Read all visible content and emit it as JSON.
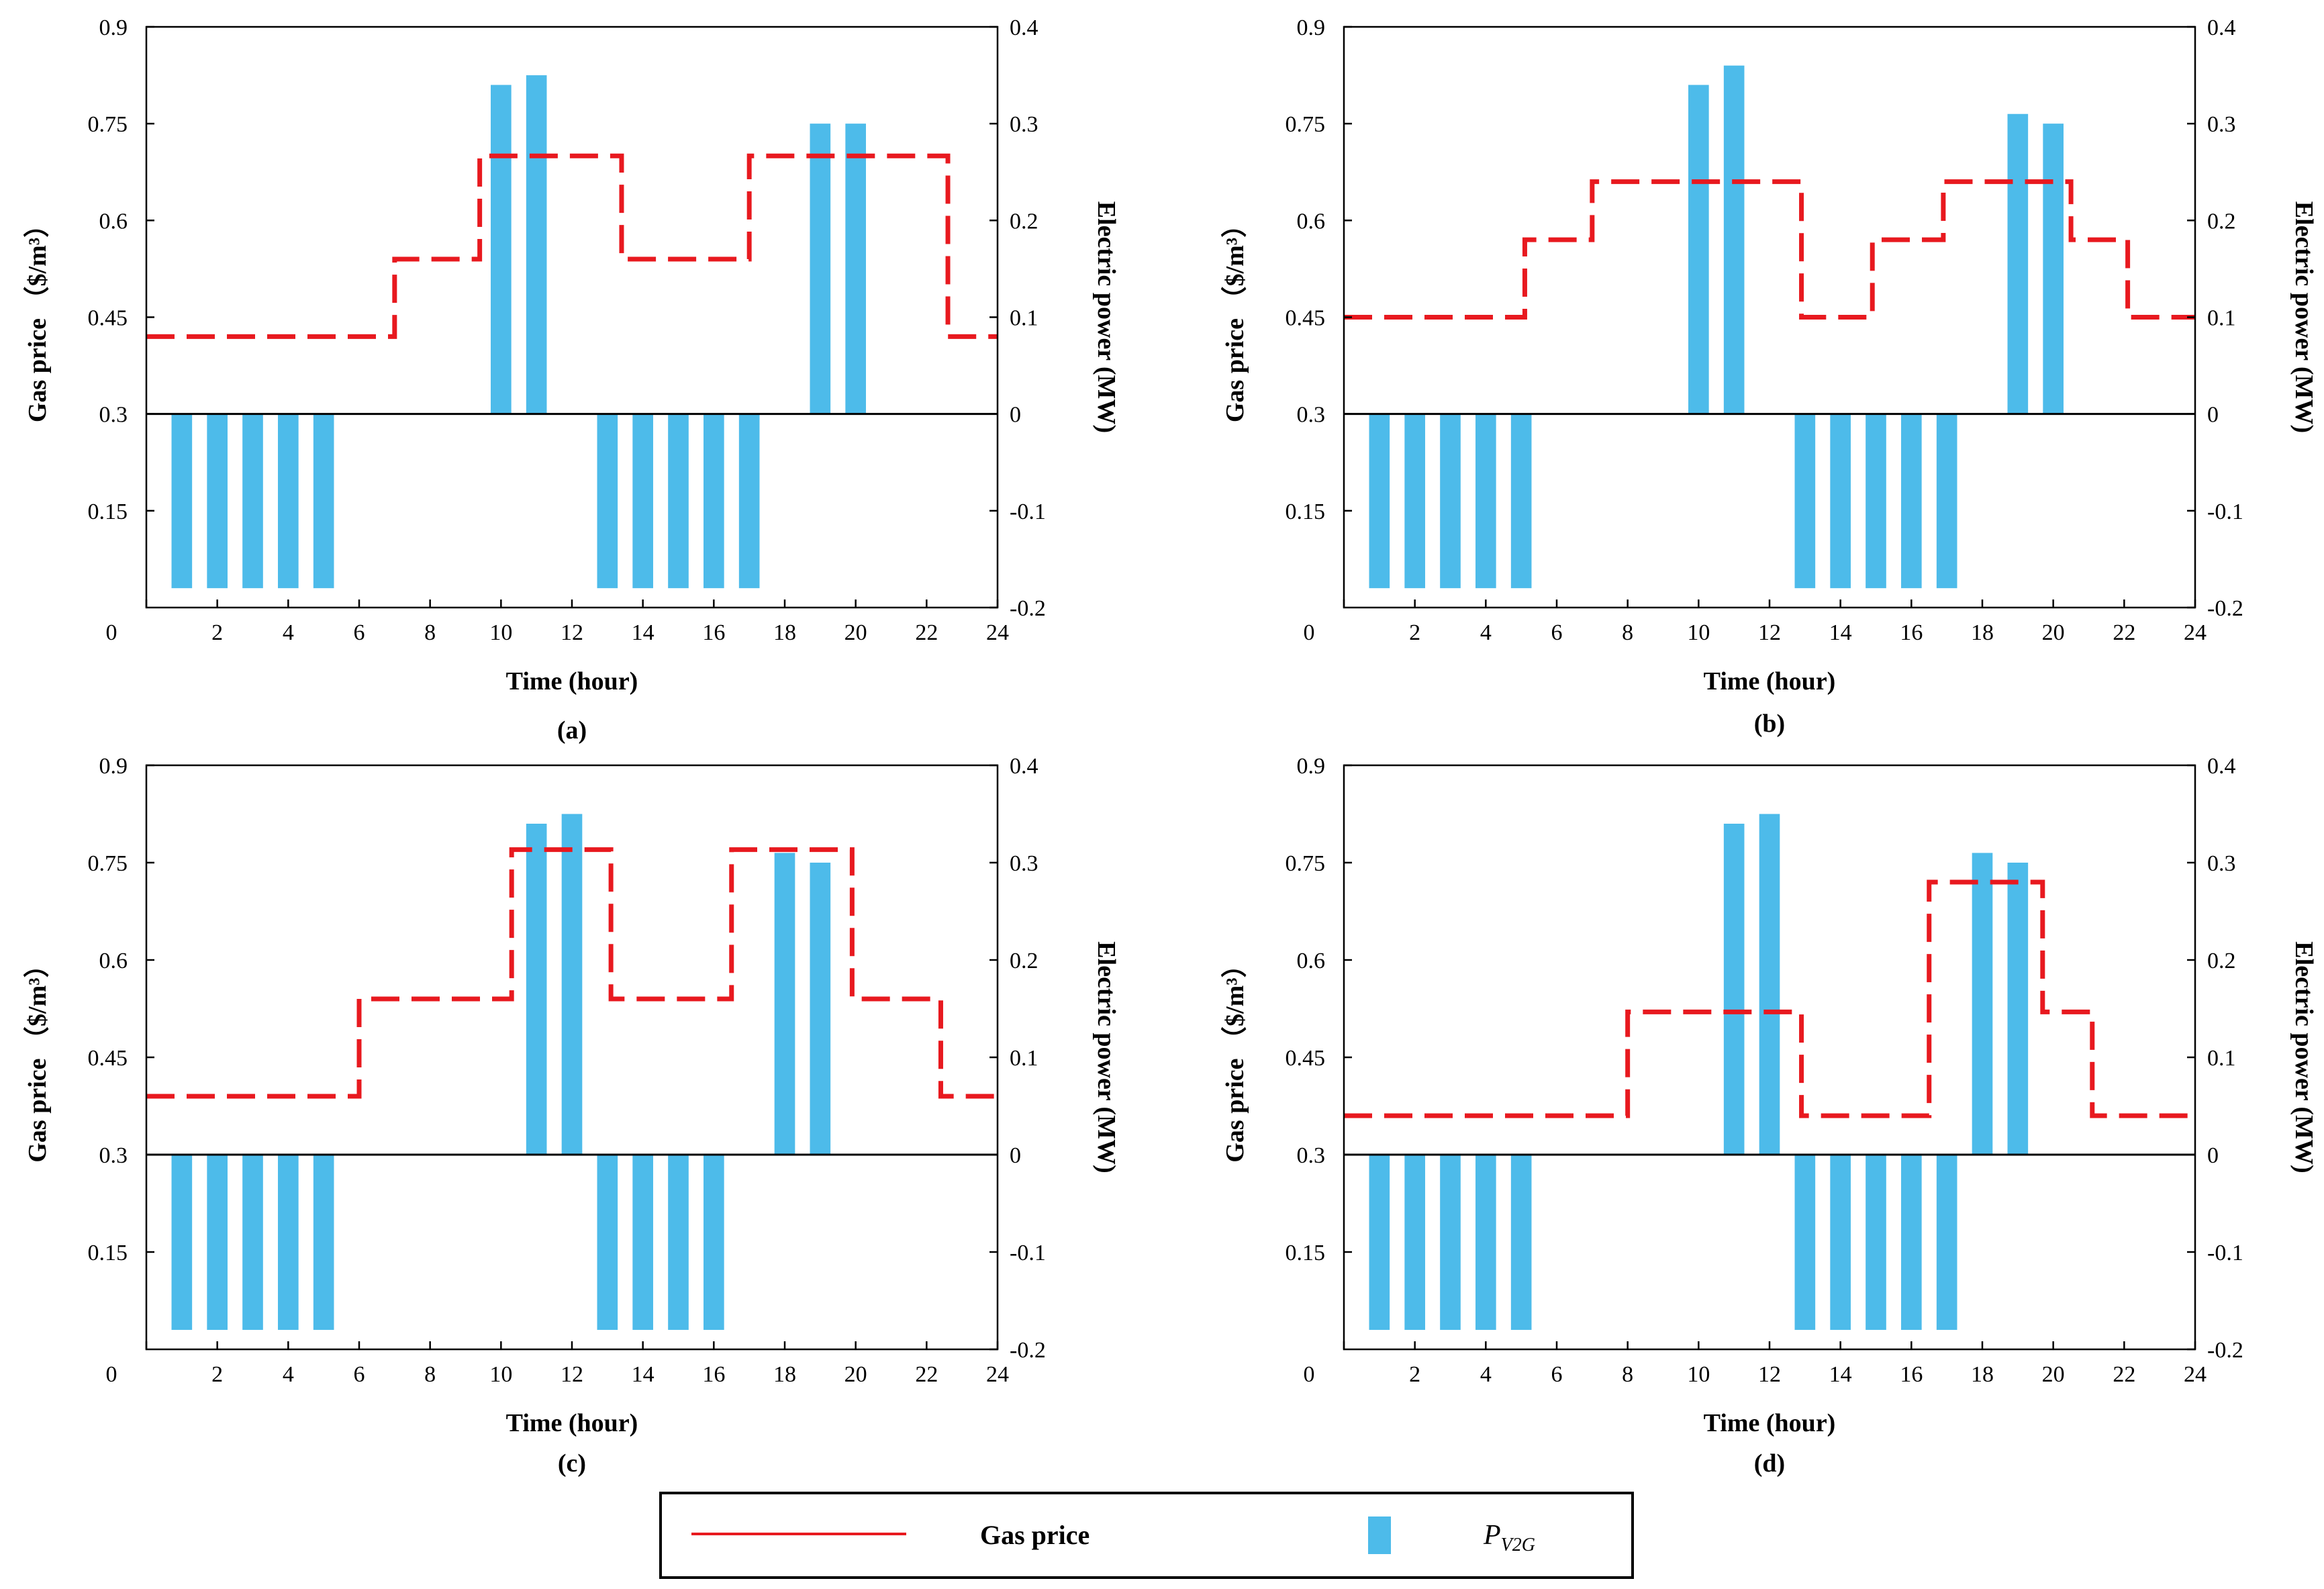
{
  "colors": {
    "gas_price": "#e8191f",
    "bar": "#4dbbea",
    "axis": "#000000"
  },
  "legend": {
    "gas_price_label": "Gas price",
    "v2g_symbol": "P",
    "v2g_subscript": "V2G"
  },
  "chart_data": [
    {
      "type": "bar+step-line",
      "panel_label": "(a)",
      "xlabel": "Time (hour)",
      "ylabel_left": "Gas price （$/m³）",
      "ylabel_right": "Electric power (MW)",
      "xlim": [
        0,
        24
      ],
      "x_ticks": [
        "0",
        "2",
        "4",
        "6",
        "8",
        "10",
        "12",
        "14",
        "16",
        "18",
        "20",
        "22",
        "24"
      ],
      "ylim_left": [
        0,
        0.9
      ],
      "y_left_ticks": [
        "0",
        "0.15",
        "0.3",
        "0.45",
        "0.6",
        "0.75",
        "0.9"
      ],
      "ylim_right": [
        -0.2,
        0.4
      ],
      "y_right_ticks": [
        "-0.2",
        "-0.1",
        "0",
        "0.1",
        "0.2",
        "0.3",
        "0.4"
      ],
      "bars": {
        "name": "P_V2G",
        "hours": [
          1,
          2,
          3,
          4,
          5,
          10,
          11,
          13,
          14,
          15,
          16,
          17,
          19,
          20
        ],
        "values": [
          -0.18,
          -0.18,
          -0.18,
          -0.18,
          -0.18,
          0.34,
          0.35,
          -0.18,
          -0.18,
          -0.18,
          -0.18,
          -0.18,
          0.3,
          0.3
        ]
      },
      "gas_price": {
        "name": "Gas price",
        "breaks": [
          0,
          7,
          9.4,
          13.4,
          17,
          22.6,
          24
        ],
        "values": [
          0.42,
          0.54,
          0.7,
          0.54,
          0.7,
          0.42
        ]
      }
    },
    {
      "type": "bar+step-line",
      "panel_label": "(b)",
      "xlabel": "Time (hour)",
      "ylabel_left": "Gas price （$/m³）",
      "ylabel_right": "Electric power (MW)",
      "xlim": [
        0,
        24
      ],
      "x_ticks": [
        "0",
        "2",
        "4",
        "6",
        "8",
        "10",
        "12",
        "14",
        "16",
        "18",
        "20",
        "22",
        "24"
      ],
      "ylim_left": [
        0,
        0.9
      ],
      "y_left_ticks": [
        "0",
        "0.15",
        "0.3",
        "0.45",
        "0.6",
        "0.75",
        "0.9"
      ],
      "ylim_right": [
        -0.2,
        0.4
      ],
      "y_right_ticks": [
        "-0.2",
        "-0.1",
        "0",
        "0.1",
        "0.2",
        "0.3",
        "0.4"
      ],
      "bars": {
        "name": "P_V2G",
        "hours": [
          1,
          2,
          3,
          4,
          5,
          10,
          11,
          13,
          14,
          15,
          16,
          17,
          19,
          20
        ],
        "values": [
          -0.18,
          -0.18,
          -0.18,
          -0.18,
          -0.18,
          0.34,
          0.36,
          -0.18,
          -0.18,
          -0.18,
          -0.18,
          -0.18,
          0.31,
          0.3
        ]
      },
      "gas_price": {
        "name": "Gas price",
        "breaks": [
          0,
          5.1,
          7,
          12.9,
          14.9,
          16.9,
          20.5,
          22.1,
          24
        ],
        "values": [
          0.45,
          0.57,
          0.66,
          0.45,
          0.57,
          0.66,
          0.57,
          0.45
        ]
      }
    },
    {
      "type": "bar+step-line",
      "panel_label": "(c)",
      "xlabel": "Time (hour)",
      "ylabel_left": "Gas price （$/m³）",
      "ylabel_right": "Electric power (MW)",
      "xlim": [
        0,
        24
      ],
      "x_ticks": [
        "0",
        "2",
        "4",
        "6",
        "8",
        "10",
        "12",
        "14",
        "16",
        "18",
        "20",
        "22",
        "24"
      ],
      "ylim_left": [
        0,
        0.9
      ],
      "y_left_ticks": [
        "0",
        "0.15",
        "0.3",
        "0.45",
        "0.6",
        "0.75",
        "0.9"
      ],
      "ylim_right": [
        -0.2,
        0.4
      ],
      "y_right_ticks": [
        "-0.2",
        "-0.1",
        "0",
        "0.1",
        "0.2",
        "0.3",
        "0.4"
      ],
      "bars": {
        "name": "P_V2G",
        "hours": [
          1,
          2,
          3,
          4,
          5,
          11,
          12,
          13,
          14,
          15,
          16,
          18,
          19
        ],
        "values": [
          -0.18,
          -0.18,
          -0.18,
          -0.18,
          -0.18,
          0.34,
          0.35,
          -0.18,
          -0.18,
          -0.18,
          -0.18,
          0.31,
          0.3
        ]
      },
      "gas_price": {
        "name": "Gas price",
        "breaks": [
          0,
          6,
          10.3,
          13.1,
          16.5,
          19.9,
          22.4,
          24
        ],
        "values": [
          0.39,
          0.54,
          0.77,
          0.54,
          0.77,
          0.54,
          0.39
        ]
      }
    },
    {
      "type": "bar+step-line",
      "panel_label": "(d)",
      "xlabel": "Time (hour)",
      "ylabel_left": "Gas price （$/m³）",
      "ylabel_right": "Electric power (MW)",
      "xlim": [
        0,
        24
      ],
      "x_ticks": [
        "0",
        "2",
        "4",
        "6",
        "8",
        "10",
        "12",
        "14",
        "16",
        "18",
        "20",
        "22",
        "24"
      ],
      "ylim_left": [
        0,
        0.9
      ],
      "y_left_ticks": [
        "0",
        "0.15",
        "0.3",
        "0.45",
        "0.6",
        "0.75",
        "0.9"
      ],
      "ylim_right": [
        -0.2,
        0.4
      ],
      "y_right_ticks": [
        "-0.2",
        "-0.1",
        "0",
        "0.1",
        "0.2",
        "0.3",
        "0.4"
      ],
      "bars": {
        "name": "P_V2G",
        "hours": [
          1,
          2,
          3,
          4,
          5,
          11,
          12,
          13,
          14,
          15,
          16,
          17,
          18,
          19
        ],
        "values": [
          -0.18,
          -0.18,
          -0.18,
          -0.18,
          -0.18,
          0.34,
          0.35,
          -0.18,
          -0.18,
          -0.18,
          -0.18,
          -0.18,
          0.31,
          0.3
        ]
      },
      "gas_price": {
        "name": "Gas price",
        "breaks": [
          0,
          8,
          12.9,
          16.5,
          19.7,
          21.1,
          24
        ],
        "values": [
          0.36,
          0.52,
          0.36,
          0.72,
          0.52,
          0.36
        ]
      }
    }
  ]
}
